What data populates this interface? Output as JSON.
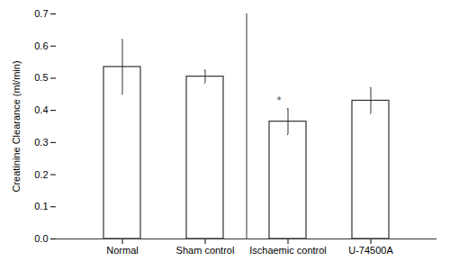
{
  "chart_data": {
    "type": "bar",
    "categories": [
      "Normal",
      "Sham control",
      "Ischaemic control",
      "U-74500A"
    ],
    "values": [
      0.535,
      0.505,
      0.365,
      0.43
    ],
    "errors": [
      0.085,
      0.02,
      0.04,
      0.04
    ],
    "color": "#ffffff",
    "ylabel": "Creatinine Clearance (ml/min)",
    "ylim": [
      0,
      0.7
    ],
    "yticks": [
      {
        "value": 0,
        "label": "0.0"
      },
      0.1,
      0.2,
      0.3,
      0.4,
      0.5,
      0.6,
      0.7
    ],
    "annotations": [
      {
        "text": "*",
        "x": "Ischaemic control"
      }
    ],
    "grid": false
  }
}
